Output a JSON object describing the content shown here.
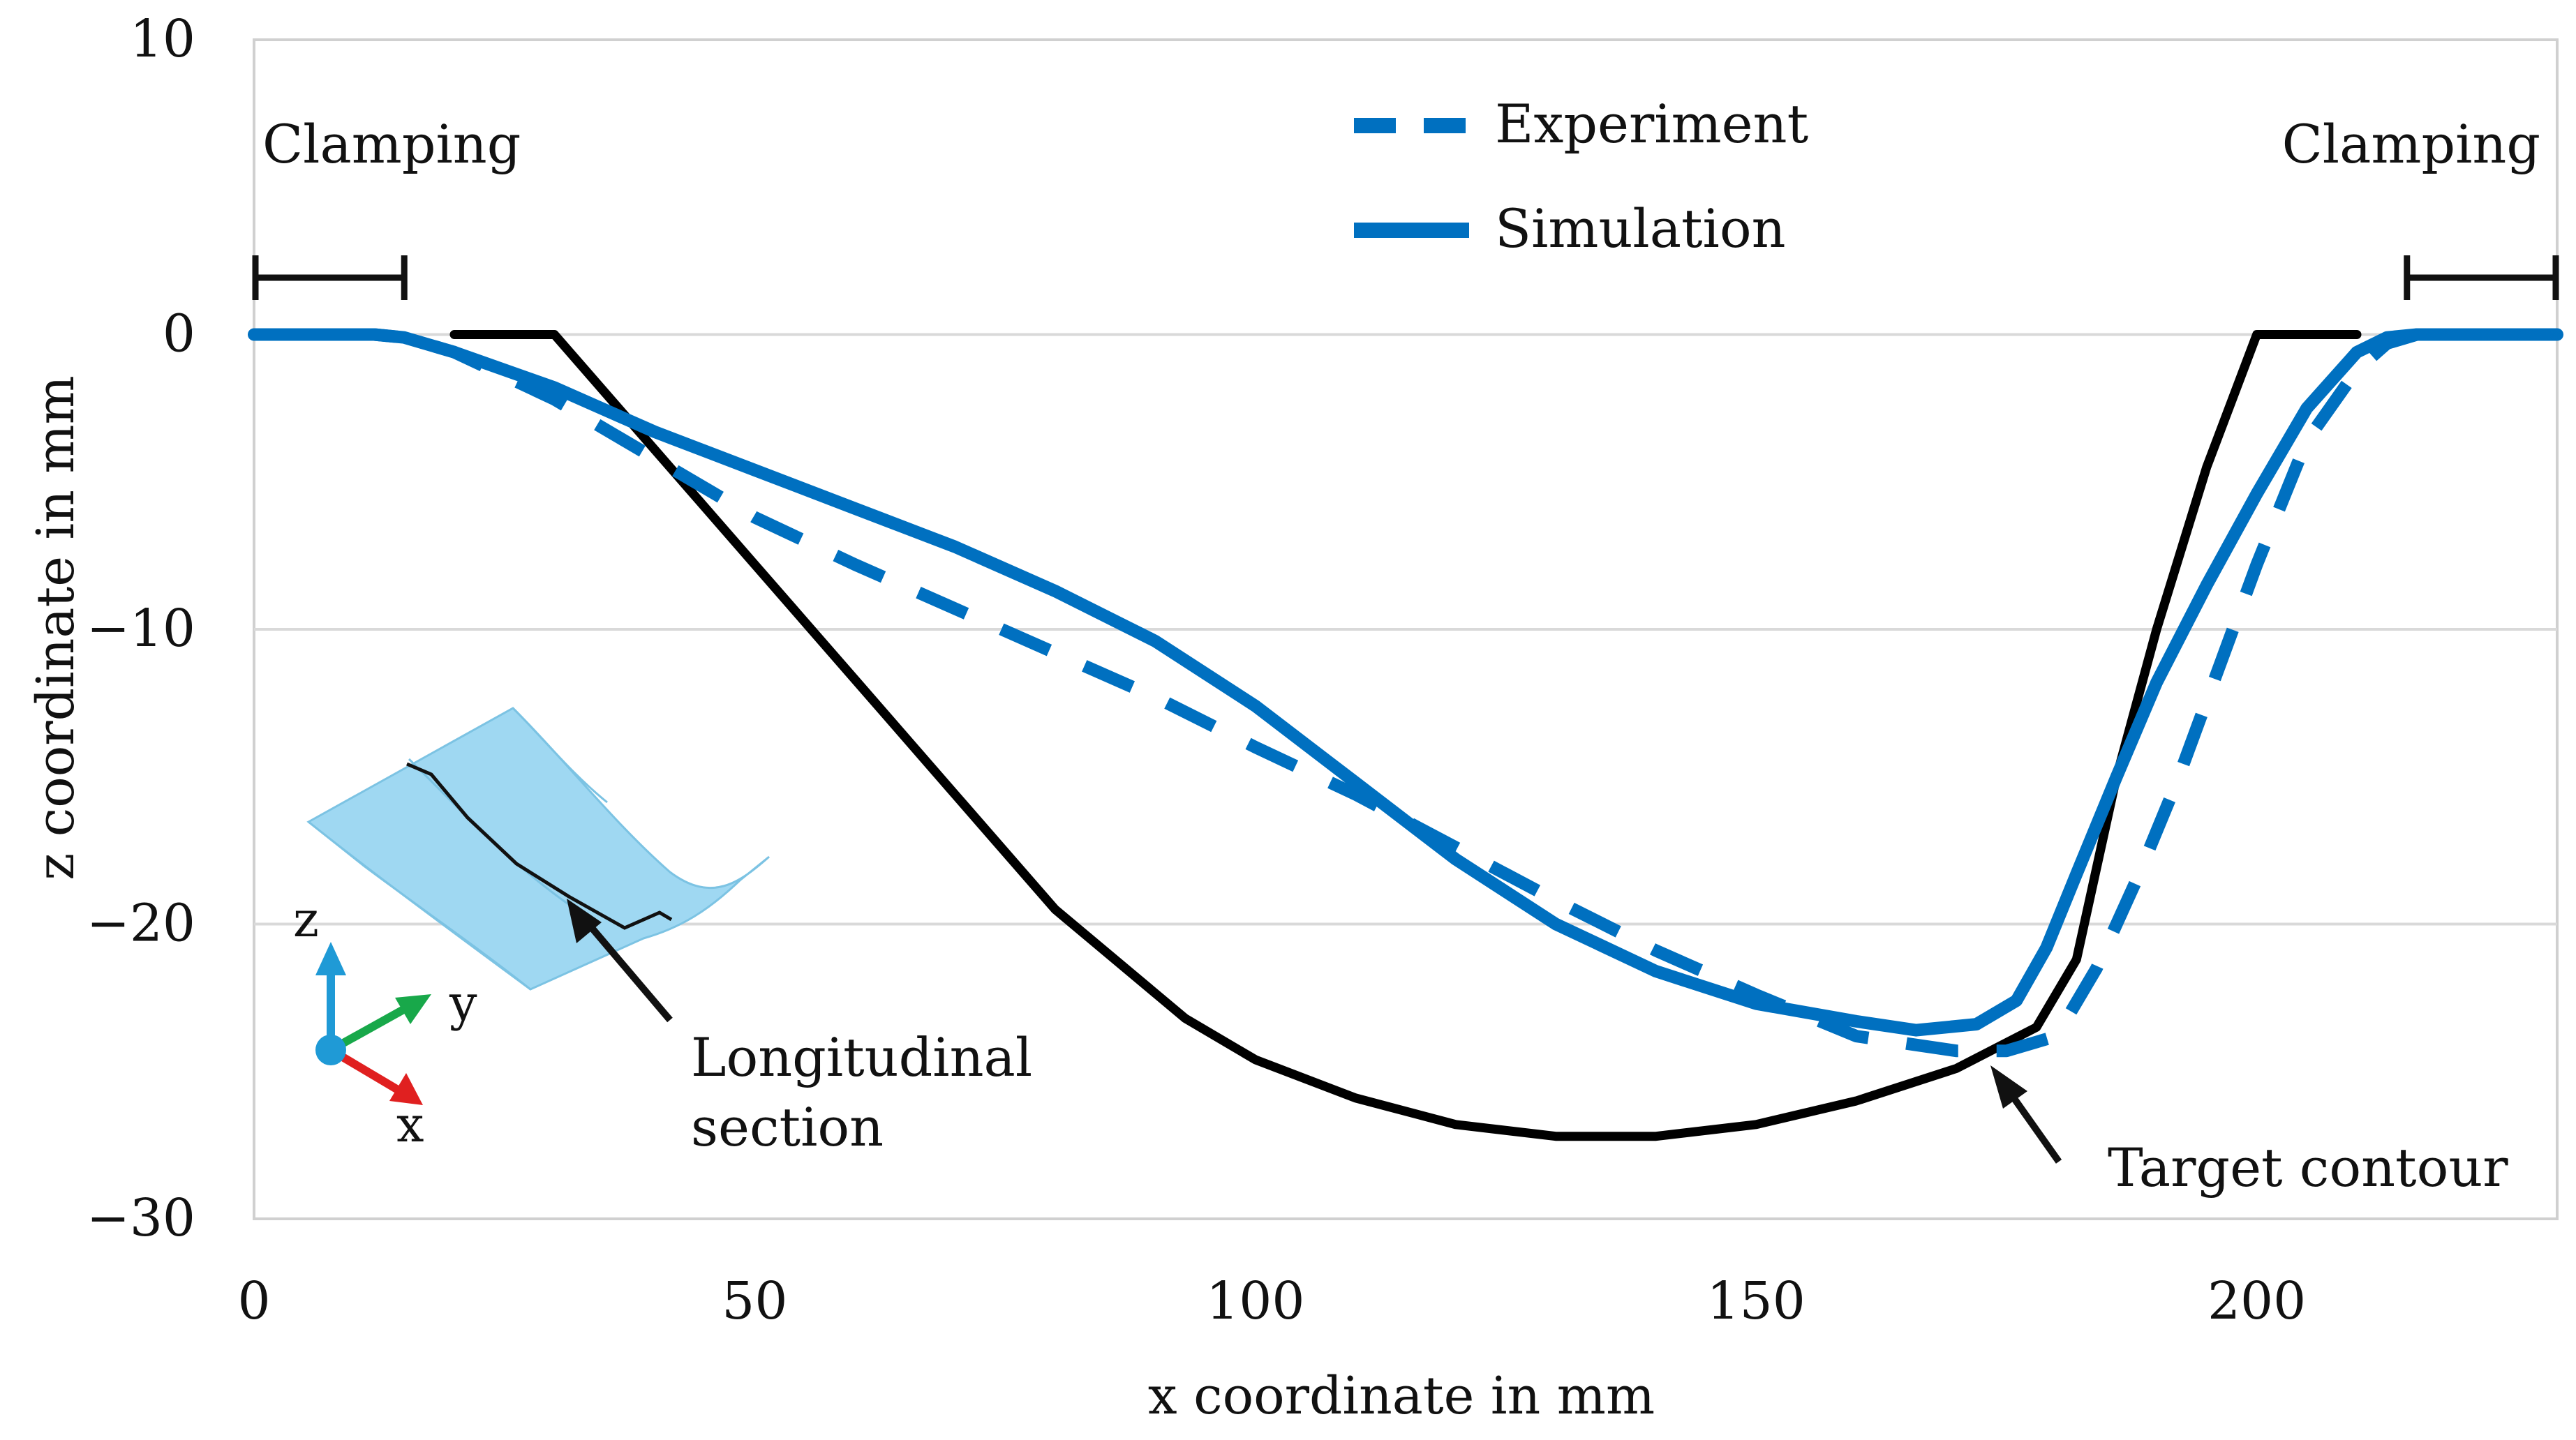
{
  "chart_data": {
    "type": "line",
    "title": "",
    "xlabel": "x coordinate in mm",
    "ylabel": "z coordinate in mm",
    "xlim": [
      0,
      230
    ],
    "ylim": [
      -30,
      10
    ],
    "xticks": [
      0,
      50,
      100,
      150,
      200
    ],
    "yticks": [
      10,
      0,
      -10,
      -20,
      -30
    ],
    "grid": "horizontal",
    "legend_position": "top-center",
    "series": [
      {
        "name": "Experiment",
        "style": "dashed",
        "color": "#0070C0",
        "x": [
          0,
          12,
          15,
          20,
          30,
          40,
          50,
          60,
          70,
          80,
          90,
          100,
          110,
          120,
          130,
          140,
          150,
          160,
          170,
          175,
          180,
          184,
          188,
          192,
          196,
          200,
          205,
          210,
          213,
          216,
          220,
          230
        ],
        "z": [
          0,
          0,
          -0.1,
          -0.6,
          -2.2,
          -4.2,
          -6.2,
          -7.8,
          -9.3,
          -10.8,
          -12.3,
          -14.0,
          -15.6,
          -17.4,
          -19.2,
          -20.9,
          -22.4,
          -23.8,
          -24.3,
          -24.3,
          -23.8,
          -21.5,
          -18.5,
          -15.2,
          -11.5,
          -7.8,
          -3.6,
          -1.2,
          -0.3,
          0,
          0,
          0
        ]
      },
      {
        "name": "Simulation",
        "style": "solid",
        "color": "#0070C0",
        "x": [
          0,
          12,
          15,
          20,
          30,
          40,
          50,
          60,
          70,
          80,
          90,
          100,
          110,
          120,
          130,
          140,
          150,
          160,
          166,
          172,
          176,
          179,
          182,
          186,
          190,
          195,
          200,
          205,
          210,
          213,
          216,
          220,
          230
        ],
        "z": [
          0,
          0,
          -0.1,
          -0.6,
          -1.8,
          -3.3,
          -4.6,
          -5.9,
          -7.2,
          -8.7,
          -10.4,
          -12.6,
          -15.2,
          -17.8,
          -20.0,
          -21.6,
          -22.7,
          -23.3,
          -23.6,
          -23.4,
          -22.6,
          -20.8,
          -18.3,
          -15.0,
          -11.8,
          -8.5,
          -5.4,
          -2.5,
          -0.6,
          -0.1,
          0,
          0,
          0
        ]
      },
      {
        "name": "Target contour",
        "style": "solid",
        "color": "#000000",
        "x": [
          20,
          30,
          40,
          50,
          60,
          70,
          80,
          93,
          100,
          110,
          120,
          130,
          140,
          150,
          160,
          170,
          178,
          182,
          186,
          190,
          195,
          200,
          210
        ],
        "z": [
          0,
          0,
          -3.9,
          -7.8,
          -11.7,
          -15.6,
          -19.5,
          -23.2,
          -24.6,
          -25.9,
          -26.8,
          -27.2,
          -27.2,
          -26.8,
          -26.0,
          -24.9,
          -23.5,
          -21.2,
          -15.0,
          -10.0,
          -4.5,
          0,
          0
        ]
      }
    ],
    "annotations": {
      "clamping_left": "Clamping",
      "clamping_right": "Clamping",
      "target_contour": "Target contour",
      "longitudinal_section": [
        "Longitudinal",
        "section"
      ],
      "clamping_ranges": [
        [
          0,
          15
        ],
        [
          215,
          230
        ]
      ]
    },
    "axes_glyph": {
      "z": "z",
      "y": "y",
      "x": "x"
    },
    "colors": {
      "experiment": "#0070C0",
      "simulation": "#0070C0",
      "target": "#000000",
      "grid": "#d9d9d9",
      "plate": "#9fd8f2",
      "plate_edge": "#7cc3e3",
      "axis_z": "#1f9ad6",
      "axis_y": "#18a84a",
      "axis_x": "#e02020"
    }
  }
}
